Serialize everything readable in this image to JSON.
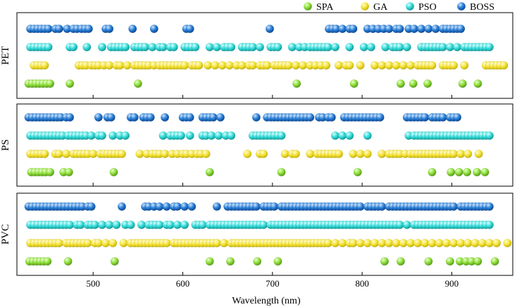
{
  "chart_data": {
    "type": "scatter",
    "xlabel": "Wavelength (nm)",
    "xlim": [
      415,
      968
    ],
    "xticks": [
      500,
      600,
      700,
      800,
      900
    ],
    "legend_position": "top-right",
    "series": [
      {
        "key": "SPA",
        "name": "SPA",
        "color": "#8fe03a",
        "row": 0
      },
      {
        "key": "GA",
        "name": "GA",
        "color": "#f5e438",
        "row": 1
      },
      {
        "key": "PSO",
        "name": "PSO",
        "color": "#36dbd9",
        "row": 2
      },
      {
        "key": "BOSS",
        "name": "BOSS",
        "color": "#2a7fd6",
        "row": 3
      }
    ],
    "panels": [
      {
        "label": "PET",
        "points": {
          "BOSS": [
            430,
            434,
            438,
            442,
            446,
            450,
            458,
            462,
            471,
            478,
            482,
            487,
            491,
            495,
            514,
            518,
            544,
            568,
            604,
            608,
            697,
            763,
            767,
            771,
            778,
            786,
            790,
            806,
            812,
            818,
            824,
            830,
            838,
            842,
            852,
            858,
            866,
            874,
            882,
            890,
            894,
            898,
            902,
            906,
            910
          ],
          "PSO": [
            430,
            434,
            438,
            442,
            446,
            450,
            474,
            478,
            493,
            510,
            520,
            524,
            528,
            532,
            536,
            546,
            550,
            554,
            558,
            566,
            574,
            578,
            586,
            590,
            602,
            606,
            610,
            614,
            630,
            638,
            646,
            650,
            654,
            666,
            670,
            674,
            678,
            686,
            698,
            702,
            706,
            722,
            730,
            736,
            742,
            746,
            750,
            754,
            758,
            762,
            770,
            786,
            802,
            810,
            826,
            834,
            838,
            842,
            850,
            866,
            870,
            874,
            878,
            882,
            886,
            890,
            898,
            906,
            914,
            918,
            922,
            926,
            930,
            934,
            938,
            942
          ],
          "GA": [
            434,
            438,
            442,
            446,
            484,
            488,
            492,
            498,
            502,
            506,
            512,
            518,
            526,
            530,
            538,
            546,
            550,
            554,
            558,
            562,
            568,
            574,
            578,
            582,
            586,
            590,
            594,
            598,
            602,
            610,
            614,
            618,
            628,
            636,
            644,
            652,
            660,
            666,
            674,
            678,
            686,
            690,
            694,
            702,
            706,
            710,
            714,
            718,
            726,
            734,
            742,
            748,
            754,
            760,
            774,
            782,
            786,
            798,
            814,
            822,
            830,
            838,
            846,
            854,
            862,
            866,
            870,
            874,
            878,
            890,
            894,
            898,
            902,
            914,
            938,
            942,
            946,
            950,
            954,
            958
          ],
          "SPA": [
            428,
            432,
            436,
            440,
            444,
            448,
            452,
            474,
            550,
            727,
            791,
            843,
            857,
            873,
            912,
            929
          ]
        }
      },
      {
        "label": "PS",
        "points": {
          "BOSS": [
            428,
            432,
            436,
            440,
            444,
            448,
            452,
            456,
            460,
            464,
            470,
            474,
            506,
            516,
            520,
            542,
            546,
            556,
            560,
            564,
            580,
            600,
            604,
            608,
            622,
            626,
            630,
            634,
            642,
            682,
            694,
            698,
            702,
            706,
            710,
            714,
            718,
            722,
            726,
            730,
            734,
            738,
            742,
            752,
            756,
            762,
            766,
            780,
            784,
            788,
            792,
            796,
            800,
            804,
            808,
            812,
            816,
            820,
            850,
            854,
            858,
            862,
            866,
            870,
            878,
            882,
            886,
            890,
            898,
            902,
            906
          ],
          "PSO": [
            430,
            434,
            438,
            442,
            446,
            450,
            454,
            458,
            462,
            466,
            472,
            476,
            480,
            484,
            488,
            492,
            498,
            506,
            510,
            522,
            530,
            536,
            578,
            586,
            590,
            594,
            598,
            608,
            622,
            626,
            632,
            640,
            648,
            654,
            678,
            682,
            686,
            690,
            694,
            698,
            702,
            706,
            710,
            770,
            778,
            786,
            806,
            852,
            858,
            862,
            866,
            870,
            874,
            878,
            882,
            886,
            890,
            894,
            898,
            902,
            906,
            910,
            914,
            918,
            922,
            926,
            930,
            934,
            938,
            942
          ],
          "GA": [
            430,
            434,
            438,
            442,
            446,
            458,
            462,
            470,
            478,
            482,
            486,
            490,
            494,
            500,
            508,
            512,
            516,
            520,
            524,
            528,
            532,
            552,
            560,
            566,
            570,
            574,
            580,
            588,
            594,
            600,
            604,
            610,
            616,
            620,
            626,
            672,
            686,
            690,
            714,
            722,
            726,
            742,
            750,
            754,
            758,
            762,
            766,
            770,
            774,
            790,
            798,
            806,
            822,
            830,
            834,
            838,
            842,
            848,
            854,
            858,
            862,
            866,
            870,
            874,
            878,
            882,
            886,
            890,
            894,
            898,
            902,
            910,
            918,
            930
          ],
          "SPA": [
            431,
            435,
            439,
            443,
            447,
            452,
            467,
            473,
            523,
            630,
            710,
            795,
            878,
            899,
            908,
            917,
            928,
            937
          ]
        }
      },
      {
        "label": "PVC",
        "points": {
          "BOSS": [
            428,
            432,
            436,
            440,
            444,
            448,
            452,
            456,
            460,
            464,
            468,
            472,
            476,
            480,
            484,
            488,
            494,
            498,
            532,
            558,
            562,
            568,
            574,
            582,
            590,
            594,
            602,
            610,
            638,
            650,
            654,
            658,
            662,
            666,
            670,
            674,
            678,
            682,
            690,
            694,
            698,
            702,
            710,
            714,
            718,
            722,
            726,
            730,
            734,
            738,
            742,
            746,
            750,
            754,
            758,
            762,
            766,
            770,
            774,
            778,
            782,
            786,
            790,
            794,
            798,
            806,
            810,
            814,
            818,
            822,
            830,
            834,
            838,
            842,
            846,
            850,
            854,
            858,
            862,
            866,
            870,
            874,
            878,
            882,
            886,
            890,
            894,
            898,
            902,
            910,
            914,
            918,
            922,
            926,
            930,
            934,
            938,
            942
          ],
          "PSO": [
            430,
            434,
            438,
            442,
            446,
            450,
            454,
            458,
            462,
            466,
            470,
            474,
            482,
            486,
            494,
            498,
            502,
            510,
            518,
            526,
            536,
            542,
            554,
            562,
            566,
            570,
            574,
            582,
            586,
            594,
            602,
            614,
            618,
            622,
            630,
            634,
            638,
            642,
            646,
            650,
            654,
            658,
            662,
            666,
            670,
            674,
            678,
            682,
            686,
            690,
            698,
            702,
            706,
            710,
            714,
            718,
            722,
            726,
            730,
            734,
            738,
            742,
            746,
            750,
            754,
            758,
            762,
            766,
            770,
            774,
            778,
            782,
            786,
            790,
            794,
            798,
            802,
            806,
            810,
            814,
            818,
            822,
            826,
            830,
            834,
            838,
            842,
            850,
            858,
            862,
            866,
            870,
            874,
            878,
            882,
            886,
            890,
            894,
            898,
            902,
            906,
            910,
            914,
            918,
            922,
            926,
            930,
            934,
            938,
            942
          ],
          "GA": [
            430,
            434,
            438,
            442,
            446,
            450,
            454,
            458,
            462,
            470,
            474,
            478,
            482,
            486,
            490,
            494,
            502,
            506,
            514,
            522,
            534,
            542,
            546,
            550,
            554,
            558,
            562,
            566,
            570,
            574,
            578,
            582,
            590,
            594,
            598,
            602,
            606,
            610,
            614,
            618,
            622,
            626,
            630,
            634,
            638,
            646,
            654,
            658,
            662,
            666,
            670,
            674,
            678,
            682,
            686,
            690,
            694,
            698,
            702,
            706,
            710,
            714,
            718,
            722,
            726,
            730,
            734,
            738,
            742,
            746,
            750,
            754,
            758,
            762,
            770,
            778,
            786,
            790,
            798,
            806,
            814,
            822,
            830,
            838,
            846,
            854,
            862,
            870,
            878,
            886,
            894,
            902,
            910,
            918,
            926,
            934,
            942,
            950,
            962
          ],
          "SPA": [
            429,
            433,
            437,
            441,
            445,
            449,
            472,
            524,
            630,
            653,
            683,
            706,
            825,
            843,
            874,
            898,
            909,
            916,
            922,
            929,
            948
          ]
        }
      }
    ]
  }
}
